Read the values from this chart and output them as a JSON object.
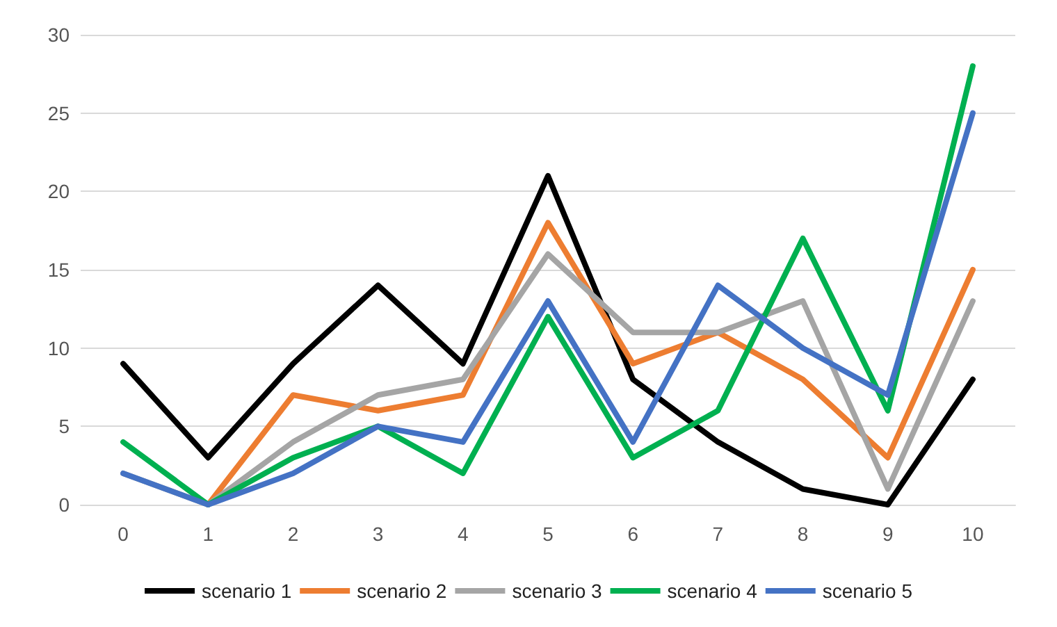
{
  "chart_data": {
    "type": "line",
    "categories": [
      "0",
      "1",
      "2",
      "3",
      "4",
      "5",
      "6",
      "7",
      "8",
      "9",
      "10"
    ],
    "series": [
      {
        "name": "scenario 1",
        "color": "#000000",
        "values": [
          9,
          3,
          9,
          14,
          9,
          21,
          8,
          4,
          1,
          0,
          8
        ]
      },
      {
        "name": "scenario 2",
        "color": "#ed7d31",
        "values": [
          null,
          0,
          7,
          6,
          7,
          18,
          9,
          11,
          8,
          3,
          15
        ]
      },
      {
        "name": "scenario 3",
        "color": "#a5a5a5",
        "values": [
          2,
          0,
          4,
          7,
          8,
          16,
          11,
          11,
          13,
          1,
          13
        ]
      },
      {
        "name": "scenario 4",
        "color": "#00b050",
        "values": [
          4,
          0,
          3,
          5,
          2,
          12,
          3,
          6,
          17,
          6,
          28
        ]
      },
      {
        "name": "scenario 5",
        "color": "#4472c4",
        "values": [
          2,
          0,
          2,
          5,
          4,
          13,
          4,
          14,
          10,
          7,
          25
        ]
      }
    ],
    "ylim": [
      0,
      30
    ],
    "yticks": [
      0,
      5,
      10,
      15,
      20,
      25,
      30
    ],
    "grid": "y",
    "legend": "bottom",
    "marker": "none",
    "line_style": "solid"
  }
}
